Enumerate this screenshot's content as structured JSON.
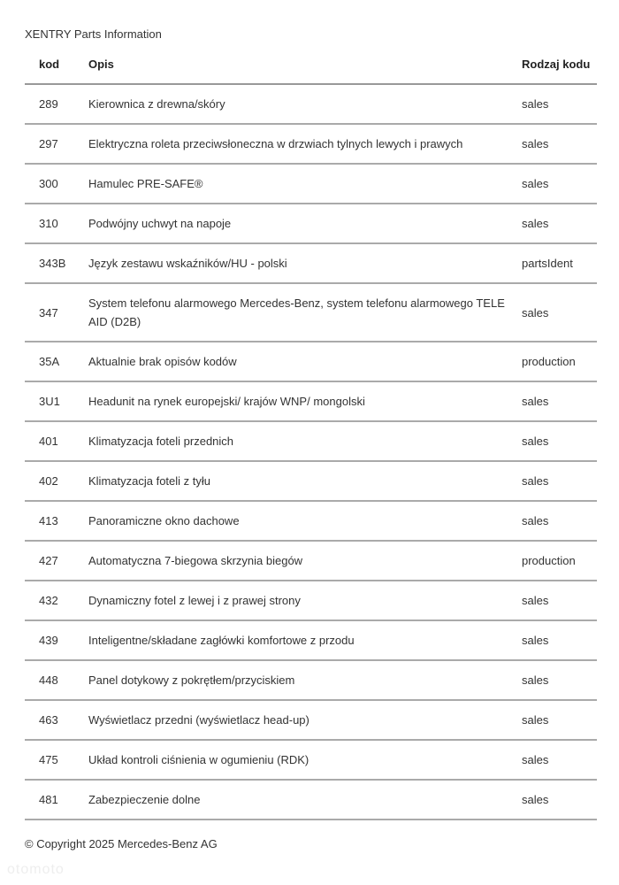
{
  "header": {
    "title": "XENTRY Parts Information"
  },
  "table": {
    "columns": [
      "kod",
      "Opis",
      "Rodzaj kodu"
    ],
    "rows": [
      {
        "kod": "289",
        "opis": "Kierownica z drewna/skóry",
        "rodzaj": "sales"
      },
      {
        "kod": "297",
        "opis": "Elektryczna roleta przeciwsłoneczna w drzwiach tylnych lewych i prawych",
        "rodzaj": "sales"
      },
      {
        "kod": "300",
        "opis": "Hamulec PRE-SAFE®",
        "rodzaj": "sales"
      },
      {
        "kod": "310",
        "opis": "Podwójny uchwyt na napoje",
        "rodzaj": "sales"
      },
      {
        "kod": "343B",
        "opis": "Język zestawu wskaźników/HU - polski",
        "rodzaj": "partsIdent"
      },
      {
        "kod": "347",
        "opis": "System telefonu alarmowego Mercedes-Benz, system telefonu alarmowego TELE AID (D2B)",
        "rodzaj": "sales"
      },
      {
        "kod": "35A",
        "opis": "Aktualnie brak opisów kodów",
        "rodzaj": "production"
      },
      {
        "kod": "3U1",
        "opis": "Headunit na rynek europejski/ krajów WNP/ mongolski",
        "rodzaj": "sales"
      },
      {
        "kod": "401",
        "opis": "Klimatyzacja foteli przednich",
        "rodzaj": "sales"
      },
      {
        "kod": "402",
        "opis": "Klimatyzacja foteli z tyłu",
        "rodzaj": "sales"
      },
      {
        "kod": "413",
        "opis": "Panoramiczne okno dachowe",
        "rodzaj": "sales"
      },
      {
        "kod": "427",
        "opis": "Automatyczna 7-biegowa skrzynia biegów",
        "rodzaj": "production"
      },
      {
        "kod": "432",
        "opis": "Dynamiczny fotel z lewej i z prawej strony",
        "rodzaj": "sales"
      },
      {
        "kod": "439",
        "opis": "Inteligentne/składane zagłówki komfortowe z przodu",
        "rodzaj": "sales"
      },
      {
        "kod": "448",
        "opis": "Panel dotykowy z pokrętłem/przyciskiem",
        "rodzaj": "sales"
      },
      {
        "kod": "463",
        "opis": "Wyświetlacz przedni (wyświetlacz head-up)",
        "rodzaj": "sales"
      },
      {
        "kod": "475",
        "opis": "Układ kontroli ciśnienia w ogumieniu (RDK)",
        "rodzaj": "sales"
      },
      {
        "kod": "481",
        "opis": "Zabezpieczenie dolne",
        "rodzaj": "sales"
      }
    ]
  },
  "footer": {
    "copyright": "© Copyright 2025 Mercedes-Benz AG",
    "watermark": "otomoto"
  }
}
